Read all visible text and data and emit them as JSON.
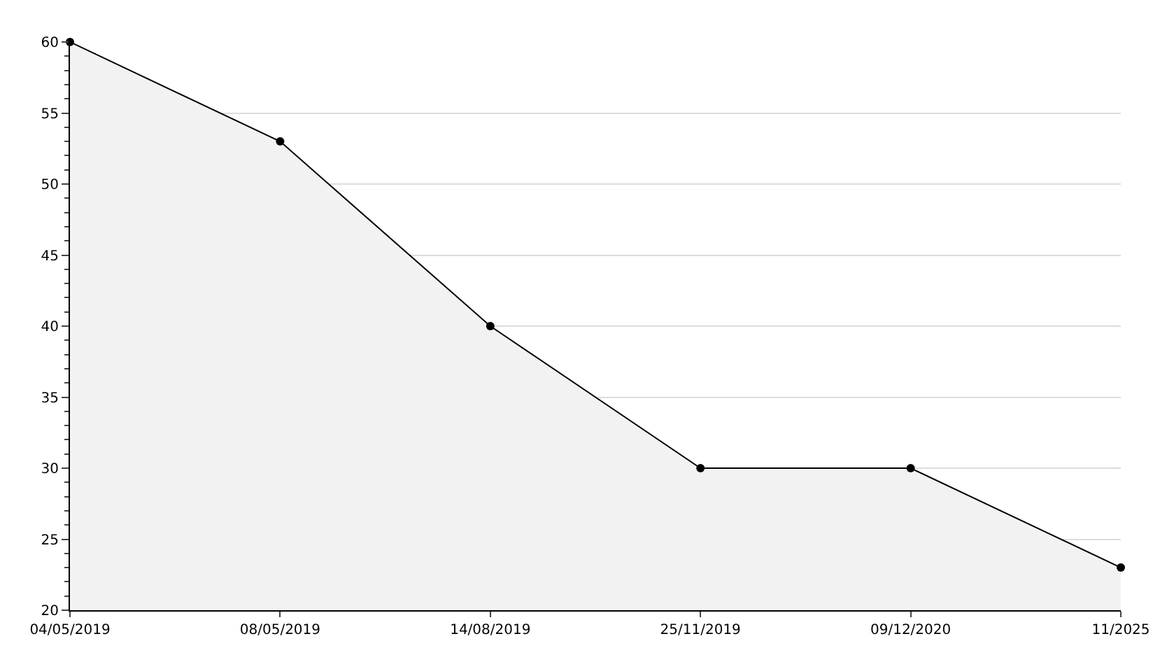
{
  "chart_data": {
    "type": "area",
    "categories": [
      "04/05/2019",
      "08/05/2019",
      "14/08/2019",
      "25/11/2019",
      "09/12/2020",
      "11/2025"
    ],
    "series": [
      {
        "color": "#000000",
        "values": [
          60,
          53,
          40,
          30,
          30,
          23
        ]
      }
    ],
    "ylim": [
      20,
      60
    ],
    "yticks": [
      20,
      25,
      30,
      35,
      40,
      45,
      50,
      55,
      60
    ],
    "grid": "y",
    "marker": "circle",
    "line_style": "solid",
    "legend": false
  }
}
